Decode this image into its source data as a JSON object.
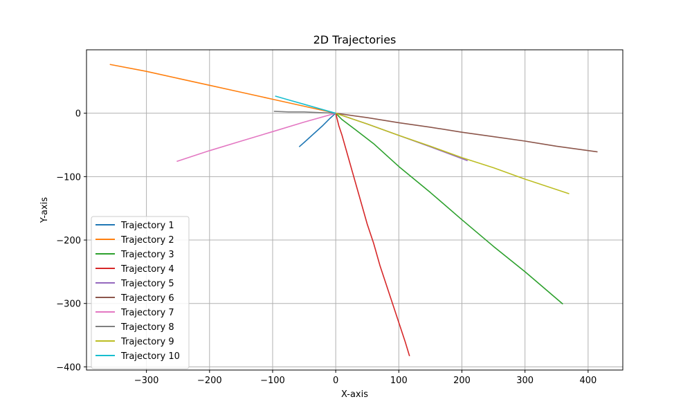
{
  "chart_data": {
    "type": "line",
    "title": "2D Trajectories",
    "xlabel": "X-axis",
    "ylabel": "Y-axis",
    "xlim": [
      -395,
      455
    ],
    "ylim": [
      -405,
      100
    ],
    "xticks": [
      -300,
      -200,
      -100,
      0,
      100,
      200,
      300,
      400
    ],
    "yticks": [
      0,
      -100,
      -200,
      -300,
      -400
    ],
    "xtick_labels": [
      "−300",
      "−200",
      "−100",
      "0",
      "100",
      "200",
      "300",
      "400"
    ],
    "ytick_labels": [
      "0",
      "−100",
      "−200",
      "−300",
      "−400"
    ],
    "grid": true,
    "legend_position": "lower-left",
    "series": [
      {
        "name": "Trajectory 1",
        "color": "#1f77b4",
        "x": [
          0,
          -10,
          -20,
          -30,
          -40,
          -50,
          -58
        ],
        "y": [
          0,
          -9,
          -19,
          -28,
          -37,
          -46,
          -53
        ]
      },
      {
        "name": "Trajectory 2",
        "color": "#ff7f0e",
        "x": [
          0,
          -50,
          -100,
          -150,
          -200,
          -250,
          -300,
          -358
        ],
        "y": [
          0,
          11,
          22,
          33,
          44,
          55,
          66,
          77
        ]
      },
      {
        "name": "Trajectory 3",
        "color": "#2ca02c",
        "x": [
          0,
          10,
          30,
          60,
          100,
          150,
          200,
          250,
          300,
          360
        ],
        "y": [
          0,
          -10,
          -25,
          -48,
          -84,
          -125,
          -168,
          -210,
          -250,
          -301
        ]
      },
      {
        "name": "Trajectory 4",
        "color": "#d62728",
        "x": [
          0,
          5,
          10,
          20,
          30,
          40,
          50,
          60,
          70,
          80,
          90,
          100,
          110,
          117
        ],
        "y": [
          0,
          -20,
          -35,
          -70,
          -105,
          -140,
          -175,
          -205,
          -240,
          -270,
          -300,
          -330,
          -360,
          -383
        ]
      },
      {
        "name": "Trajectory 5",
        "color": "#9467bd",
        "x": [
          0,
          50,
          100,
          150,
          209
        ],
        "y": [
          0,
          -17,
          -35,
          -53,
          -75
        ]
      },
      {
        "name": "Trajectory 6",
        "color": "#8c564b",
        "x": [
          0,
          50,
          100,
          150,
          200,
          250,
          300,
          350,
          415
        ],
        "y": [
          0,
          -7,
          -15,
          -22,
          -30,
          -37,
          -44,
          -52,
          -61
        ]
      },
      {
        "name": "Trajectory 7",
        "color": "#e377c2",
        "x": [
          0,
          -50,
          -100,
          -150,
          -200,
          -252
        ],
        "y": [
          0,
          -14,
          -29,
          -44,
          -59,
          -76
        ]
      },
      {
        "name": "Trajectory 8",
        "color": "#7f7f7f",
        "x": [
          0,
          -25,
          -50,
          -75,
          -98
        ],
        "y": [
          0,
          1,
          2,
          2,
          3
        ]
      },
      {
        "name": "Trajectory 9",
        "color": "#bcbd22",
        "x": [
          0,
          50,
          100,
          150,
          200,
          250,
          300,
          370
        ],
        "y": [
          0,
          -17,
          -35,
          -52,
          -70,
          -86,
          -104,
          -127
        ]
      },
      {
        "name": "Trajectory 10",
        "color": "#17becf",
        "x": [
          0,
          -25,
          -50,
          -75,
          -96
        ],
        "y": [
          0,
          7,
          14,
          21,
          27
        ]
      }
    ]
  }
}
